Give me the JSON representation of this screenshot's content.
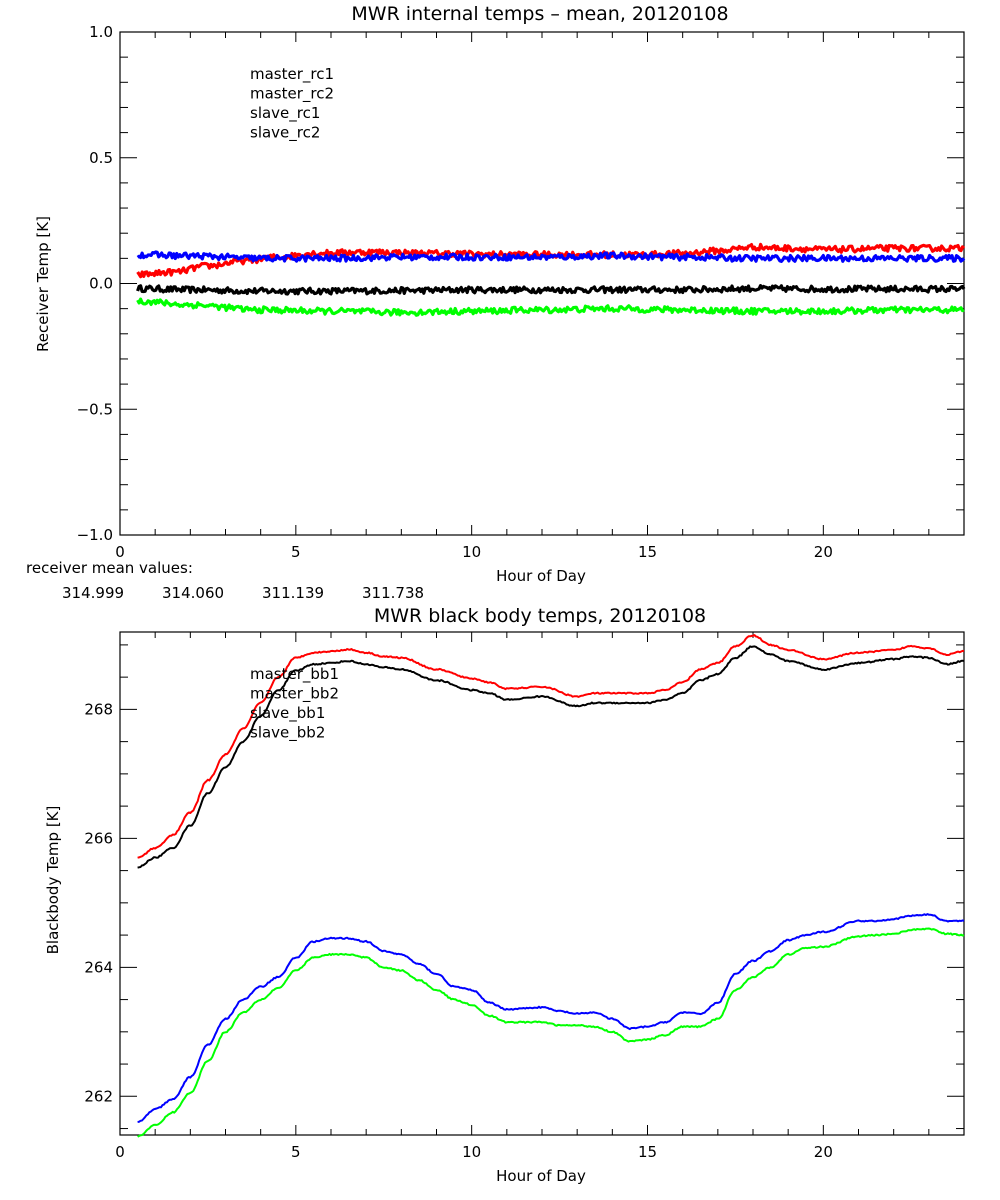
{
  "chart_data": [
    {
      "type": "line",
      "title": "MWR internal temps – mean, 20120108",
      "xlabel": "Hour of Day",
      "ylabel": "Receiver Temp [K]",
      "xlim": [
        0,
        24
      ],
      "ylim": [
        -1.0,
        1.0
      ],
      "x_ticks": [
        "0",
        "5",
        "10",
        "15",
        "20"
      ],
      "x_tick_values": [
        0,
        5,
        10,
        15,
        20
      ],
      "x_minor_step": 1,
      "y_ticks": [
        "−1.0",
        "−0.5",
        "0.0",
        "0.5",
        "1.0"
      ],
      "y_tick_values": [
        -1.0,
        -0.5,
        0.0,
        0.5,
        1.0
      ],
      "y_minor_step": 0.1,
      "grid": false,
      "legend_position": "top-left (inside)",
      "noise": 0.012,
      "series": [
        {
          "name": "master_rc1",
          "color": "#000000",
          "x": [
            0.5,
            2,
            4,
            6,
            8,
            10,
            12,
            14,
            16,
            18,
            20,
            22,
            24
          ],
          "y": [
            -0.02,
            -0.025,
            -0.03,
            -0.03,
            -0.028,
            -0.025,
            -0.025,
            -0.025,
            -0.025,
            -0.02,
            -0.022,
            -0.022,
            -0.022
          ]
        },
        {
          "name": "master_rc2",
          "color": "#ff0000",
          "x": [
            0.5,
            1.5,
            2.5,
            3.5,
            4.5,
            5.5,
            7,
            9,
            11,
            13,
            15,
            16,
            17,
            18,
            19,
            20,
            22,
            24
          ],
          "y": [
            0.035,
            0.045,
            0.07,
            0.09,
            0.105,
            0.12,
            0.125,
            0.12,
            0.115,
            0.115,
            0.115,
            0.12,
            0.13,
            0.145,
            0.14,
            0.135,
            0.14,
            0.14
          ]
        },
        {
          "name": "slave_rc1",
          "color": "#0000ff",
          "x": [
            0.5,
            2,
            4,
            6,
            8,
            10,
            12,
            14,
            16,
            18,
            20,
            22,
            24
          ],
          "y": [
            0.115,
            0.11,
            0.1,
            0.1,
            0.105,
            0.105,
            0.105,
            0.11,
            0.105,
            0.1,
            0.1,
            0.1,
            0.1
          ]
        },
        {
          "name": "slave_rc2",
          "color": "#00ff00",
          "x": [
            0.5,
            2,
            4,
            6,
            8,
            10,
            12,
            14,
            16,
            18,
            20,
            22,
            24
          ],
          "y": [
            -0.07,
            -0.085,
            -0.105,
            -0.11,
            -0.115,
            -0.11,
            -0.105,
            -0.1,
            -0.105,
            -0.11,
            -0.11,
            -0.105,
            -0.105
          ]
        }
      ],
      "annotation": {
        "label": "receiver mean values:",
        "values": [
          {
            "text": "314.999",
            "color": "#000000"
          },
          {
            "text": "314.060",
            "color": "#ff0000"
          },
          {
            "text": "311.139",
            "color": "#0000ff"
          },
          {
            "text": "311.738",
            "color": "#00ff00"
          }
        ]
      }
    },
    {
      "type": "line",
      "title": "MWR black body temps, 20120108",
      "xlabel": "Hour of Day",
      "ylabel": "Blackbody Temp [K]",
      "xlim": [
        0,
        24
      ],
      "ylim": [
        261.4,
        269.2
      ],
      "x_ticks": [
        "0",
        "5",
        "10",
        "15",
        "20"
      ],
      "x_tick_values": [
        0,
        5,
        10,
        15,
        20
      ],
      "x_minor_step": 1,
      "y_ticks": [
        "262",
        "264",
        "266",
        "268"
      ],
      "y_tick_values": [
        262,
        264,
        266,
        268
      ],
      "y_minor_step": 0.5,
      "grid": false,
      "legend_position": "top-left (inside)",
      "noise": 0.01,
      "series": [
        {
          "name": "master_bb1",
          "color": "#000000",
          "x": [
            0.5,
            1,
            1.5,
            2,
            2.5,
            3,
            3.5,
            4,
            4.5,
            5,
            5.5,
            6,
            6.5,
            7,
            7.5,
            8,
            9,
            10,
            10.5,
            11,
            12,
            13,
            13.5,
            14,
            15,
            15.5,
            16,
            16.5,
            17,
            17.5,
            18,
            18.5,
            19,
            20,
            21,
            22,
            22.5,
            23,
            23.5,
            24
          ],
          "y": [
            265.55,
            265.7,
            265.85,
            266.2,
            266.7,
            267.1,
            267.5,
            267.9,
            268.3,
            268.6,
            268.7,
            268.72,
            268.75,
            268.7,
            268.65,
            268.62,
            268.45,
            268.3,
            268.25,
            268.15,
            268.2,
            268.05,
            268.1,
            268.1,
            268.1,
            268.15,
            268.25,
            268.45,
            268.55,
            268.8,
            268.98,
            268.85,
            268.75,
            268.62,
            268.72,
            268.78,
            268.82,
            268.8,
            268.7,
            268.75
          ]
        },
        {
          "name": "master_bb2",
          "color": "#ff0000",
          "x": [
            0.5,
            1,
            1.5,
            2,
            2.5,
            3,
            3.5,
            4,
            4.5,
            5,
            5.5,
            6,
            6.5,
            7,
            7.5,
            8,
            9,
            10,
            10.5,
            11,
            12,
            13,
            13.5,
            14,
            15,
            15.5,
            16,
            16.5,
            17,
            17.5,
            18,
            18.5,
            19,
            20,
            21,
            22,
            22.5,
            23,
            23.5,
            24
          ],
          "y": [
            265.7,
            265.85,
            266.05,
            266.4,
            266.9,
            267.3,
            267.7,
            268.1,
            268.5,
            268.8,
            268.88,
            268.9,
            268.93,
            268.88,
            268.82,
            268.8,
            268.62,
            268.48,
            268.42,
            268.32,
            268.35,
            268.2,
            268.25,
            268.25,
            268.25,
            268.3,
            268.42,
            268.62,
            268.72,
            268.98,
            269.15,
            269.0,
            268.92,
            268.78,
            268.88,
            268.92,
            268.98,
            268.95,
            268.85,
            268.9
          ]
        },
        {
          "name": "slave_bb1",
          "color": "#0000ff",
          "x": [
            0.5,
            1,
            1.5,
            2,
            2.5,
            3,
            3.5,
            4,
            4.5,
            5,
            5.5,
            6,
            6.5,
            7,
            7.5,
            8,
            8.5,
            9,
            9.5,
            10,
            10.5,
            11,
            12,
            12.5,
            13,
            13.5,
            14,
            14.5,
            15,
            15.5,
            16,
            16.5,
            17,
            17.5,
            18,
            18.5,
            19,
            19.5,
            20,
            21,
            21.5,
            22,
            22.5,
            23,
            23.5,
            24
          ],
          "y": [
            261.6,
            261.8,
            261.95,
            262.3,
            262.8,
            263.2,
            263.5,
            263.7,
            263.85,
            264.15,
            264.4,
            264.45,
            264.45,
            264.4,
            264.25,
            264.2,
            264.05,
            263.9,
            263.7,
            263.65,
            263.45,
            263.35,
            263.38,
            263.32,
            263.28,
            263.3,
            263.2,
            263.05,
            263.08,
            263.15,
            263.3,
            263.28,
            263.45,
            263.9,
            264.1,
            264.25,
            264.42,
            264.5,
            264.55,
            264.72,
            264.72,
            264.75,
            264.8,
            264.82,
            264.72,
            264.72
          ]
        },
        {
          "name": "slave_bb2",
          "color": "#00ff00",
          "x": [
            0.5,
            1,
            1.5,
            2,
            2.5,
            3,
            3.5,
            4,
            4.5,
            5,
            5.5,
            6,
            6.5,
            7,
            7.5,
            8,
            8.5,
            9,
            9.5,
            10,
            10.5,
            11,
            12,
            12.5,
            13,
            13.5,
            14,
            14.5,
            15,
            15.5,
            16,
            16.5,
            17,
            17.5,
            18,
            18.5,
            19,
            19.5,
            20,
            21,
            21.5,
            22,
            22.5,
            23,
            23.5,
            24
          ],
          "y": [
            261.38,
            261.55,
            261.75,
            262.05,
            262.55,
            263.0,
            263.3,
            263.5,
            263.68,
            263.95,
            264.15,
            264.2,
            264.2,
            264.15,
            264.0,
            263.95,
            263.8,
            263.65,
            263.5,
            263.42,
            263.25,
            263.15,
            263.15,
            263.1,
            263.1,
            263.08,
            263.0,
            262.85,
            262.88,
            262.95,
            263.08,
            263.08,
            263.2,
            263.65,
            263.85,
            264.0,
            264.2,
            264.3,
            264.32,
            264.48,
            264.5,
            264.52,
            264.58,
            264.6,
            264.52,
            264.5
          ]
        }
      ]
    }
  ]
}
